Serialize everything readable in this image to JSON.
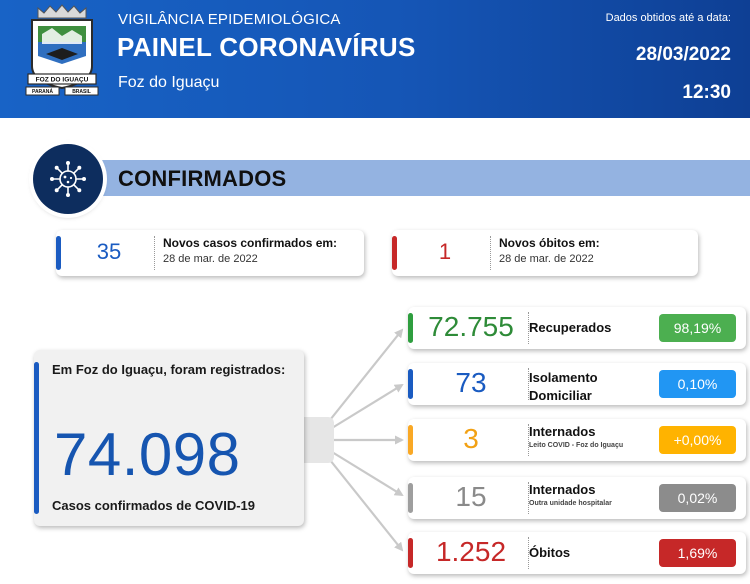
{
  "header": {
    "subtitle": "VIGILÂNCIA EPIDEMIOLÓGICA",
    "title": "PAINEL CORONAVÍRUS",
    "city": "Foz do Iguaçu",
    "date_label": "Dados obtidos até a data:",
    "date": "28/03/2022",
    "time": "12:30",
    "crest": {
      "banner": "FOZ DO IGUAÇU",
      "left_scroll": "PARANÁ",
      "right_scroll": "BRASIL"
    }
  },
  "section": {
    "title": "CONFIRMADOS",
    "icon": "virus-icon"
  },
  "new_cases": {
    "value": "35",
    "label": "Novos casos confirmados em:",
    "date": "28 de mar. de 2022",
    "color": "#1a5bc1"
  },
  "new_deaths": {
    "value": "1",
    "label": "Novos óbitos em:",
    "date": "28 de mar. de 2022",
    "color": "#c62828"
  },
  "total": {
    "label": "Em Foz do Iguaçu, foram registrados:",
    "value": "74.098",
    "sublabel": "Casos confirmados de COVID-19",
    "color": "#1655b0"
  },
  "stats": [
    {
      "value": "72.755",
      "label": "Recuperados",
      "pct": "98,19%",
      "color": "#2e9e3f",
      "pct_color": "#4caf50",
      "value_color": "#2e8b38"
    },
    {
      "value": "73",
      "label_line1": "Isolamento",
      "label_line2": "Domiciliar",
      "pct": "0,10%",
      "color": "#1a5bc1",
      "pct_color": "#2196f3",
      "value_color": "#1a5bc1"
    },
    {
      "value": "3",
      "label": "Internados",
      "note": "Leito COVID - Foz do Iguaçu",
      "pct": "+0,00%",
      "color": "#f9a825",
      "pct_color": "#ffb300",
      "value_color": "#f2a114"
    },
    {
      "value": "15",
      "label": "Internados",
      "note": "Outra unidade hospitalar",
      "pct": "0,02%",
      "color": "#9e9e9e",
      "pct_color": "#8c8c8c",
      "value_color": "#8a8a8a"
    },
    {
      "value": "1.252",
      "label": "Óbitos",
      "pct": "1,69%",
      "color": "#c62828",
      "pct_color": "#c62828",
      "value_color": "#c62828"
    }
  ]
}
